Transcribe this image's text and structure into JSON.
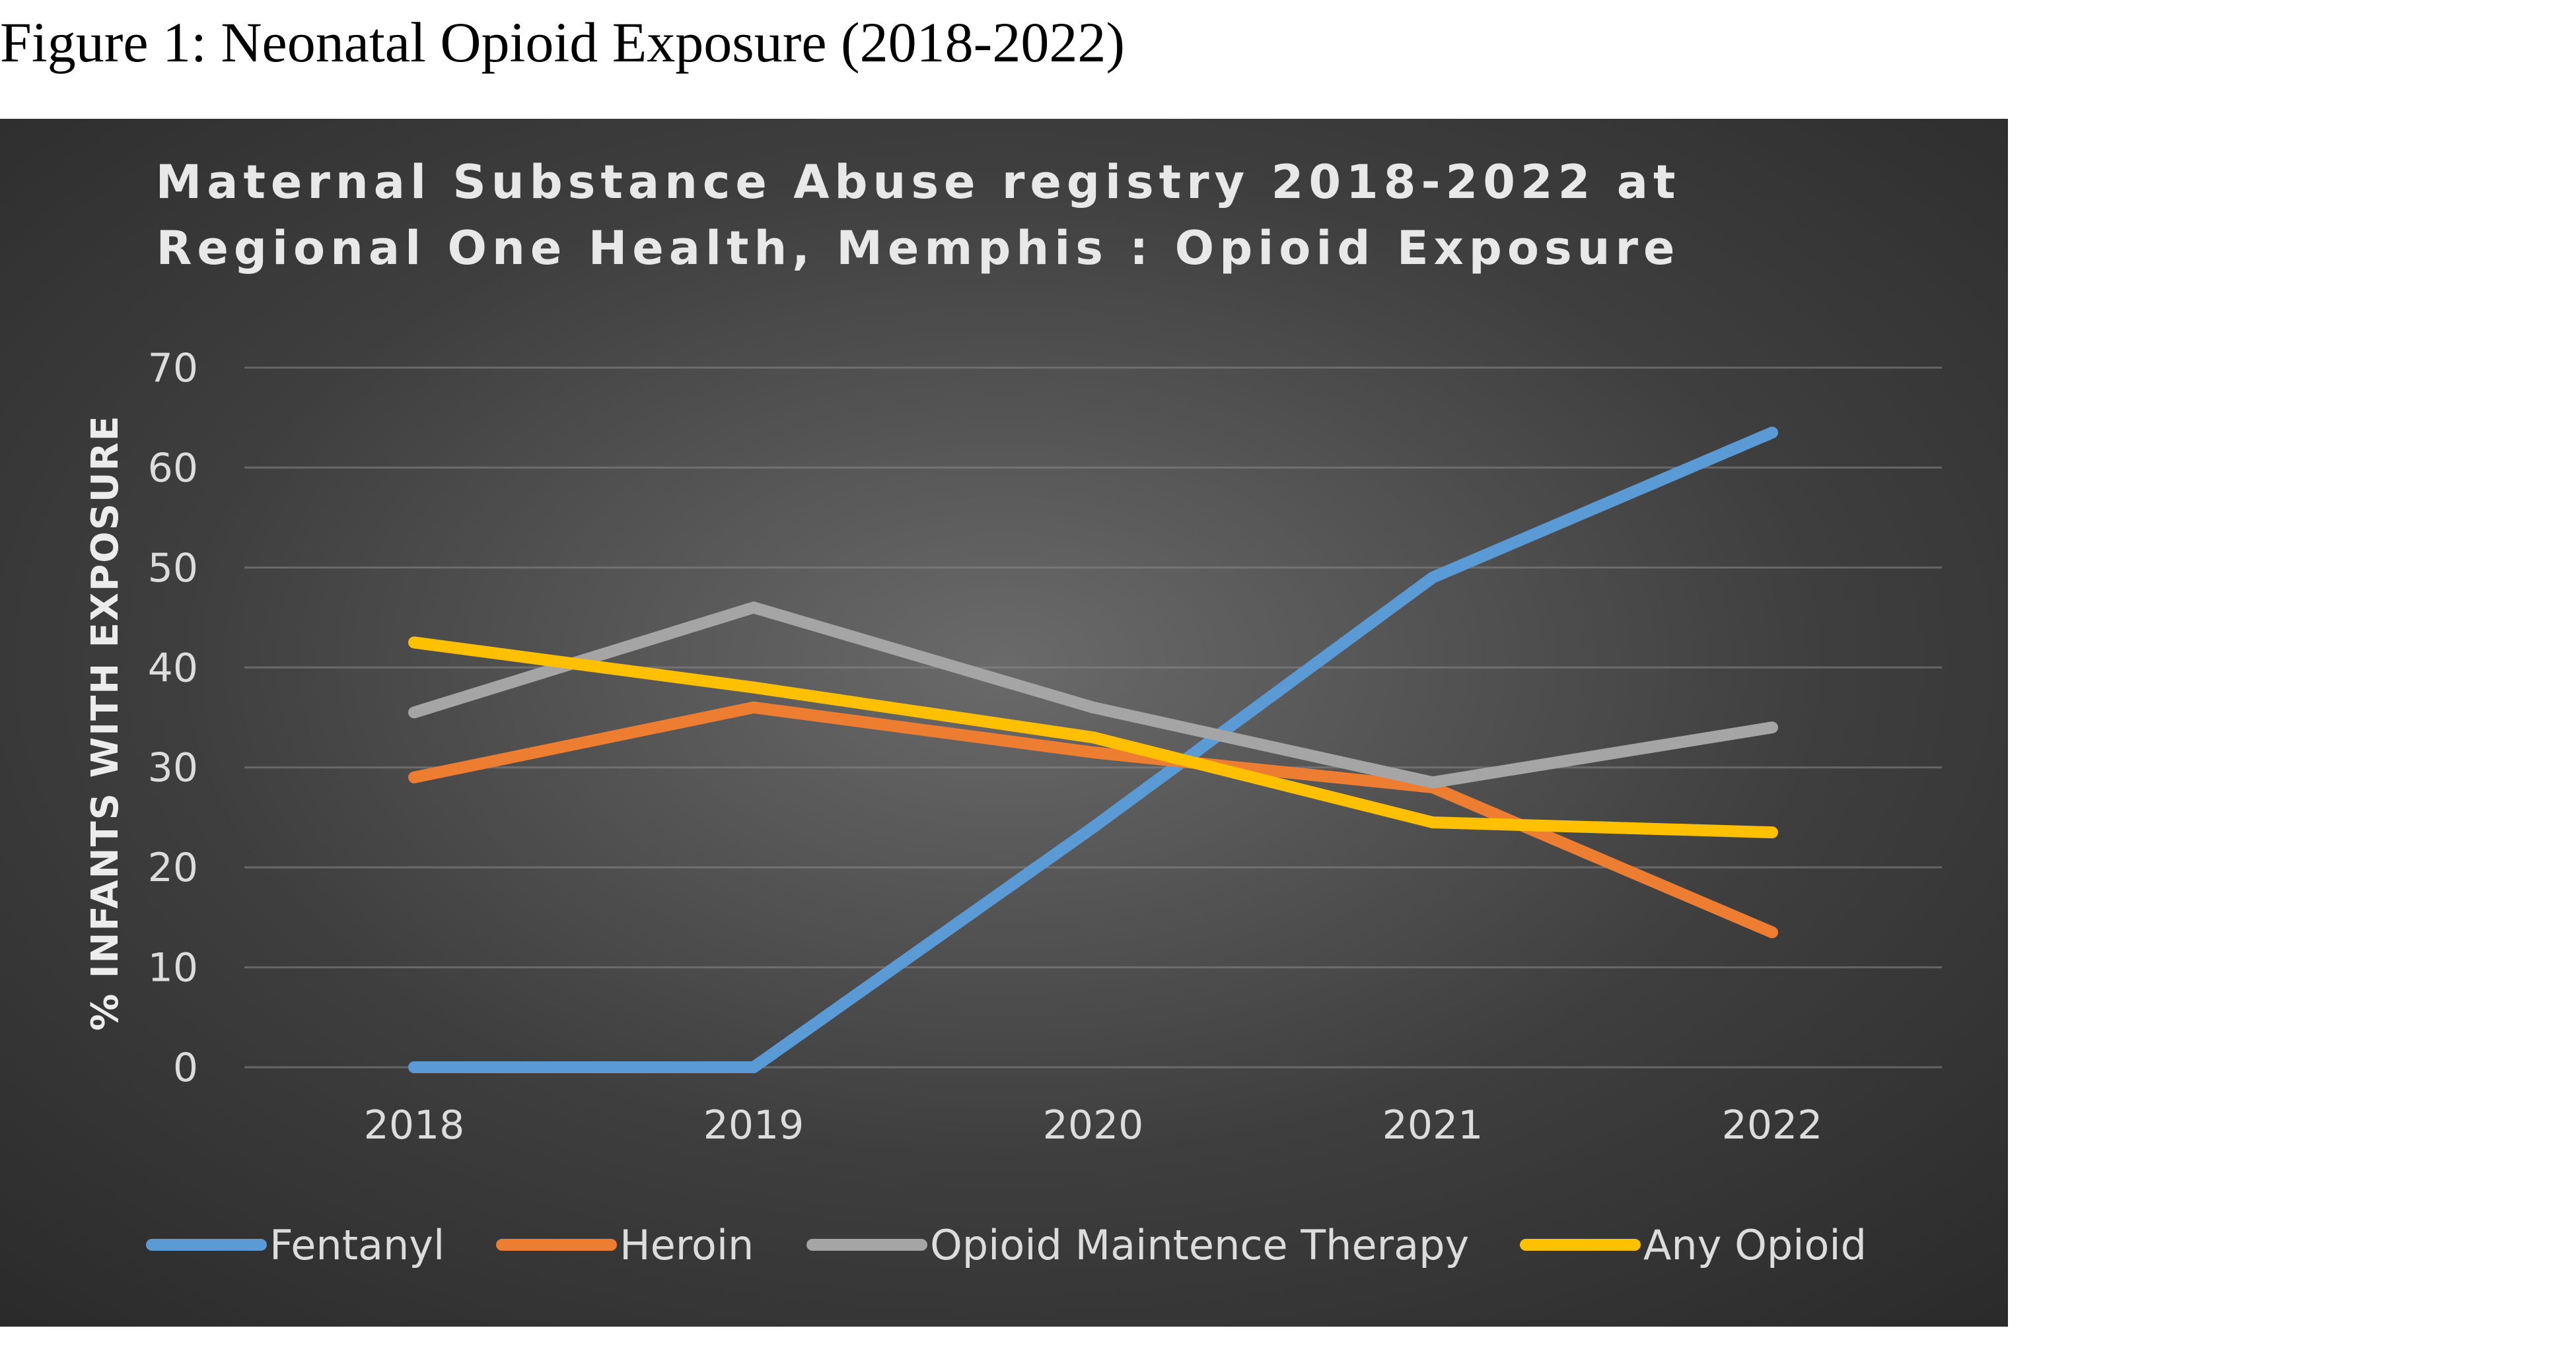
{
  "figure_caption": "Figure 1: Neonatal Opioid Exposure (2018-2022)",
  "chart_data": {
    "type": "line",
    "title_lines": [
      "Maternal Substance Abuse registry 2018-2022 at",
      "Regional One Health, Memphis : Opioid Exposure"
    ],
    "ylabel": "% INFANTS WITH EXPOSURE",
    "xlabel": "",
    "categories": [
      "2018",
      "2019",
      "2020",
      "2021",
      "2022"
    ],
    "ylim": [
      0,
      70
    ],
    "yticks": [
      "0",
      "10",
      "20",
      "30",
      "40",
      "50",
      "60",
      "70"
    ],
    "grid": true,
    "legend_position": "bottom",
    "series": [
      {
        "name": "Fentanyl",
        "color": "#5b9bd5",
        "values": [
          0,
          0,
          24,
          49,
          63.5
        ]
      },
      {
        "name": "Heroin",
        "color": "#ed7d31",
        "values": [
          29,
          36,
          31.5,
          28,
          13.5
        ]
      },
      {
        "name": "Opioid Maintence Therapy",
        "color": "#a5a5a5",
        "values": [
          35.5,
          46,
          36,
          28.5,
          34
        ]
      },
      {
        "name": "Any Opioid",
        "color": "#ffc000",
        "values": [
          42.5,
          38,
          33,
          24.5,
          23.5
        ]
      }
    ]
  }
}
